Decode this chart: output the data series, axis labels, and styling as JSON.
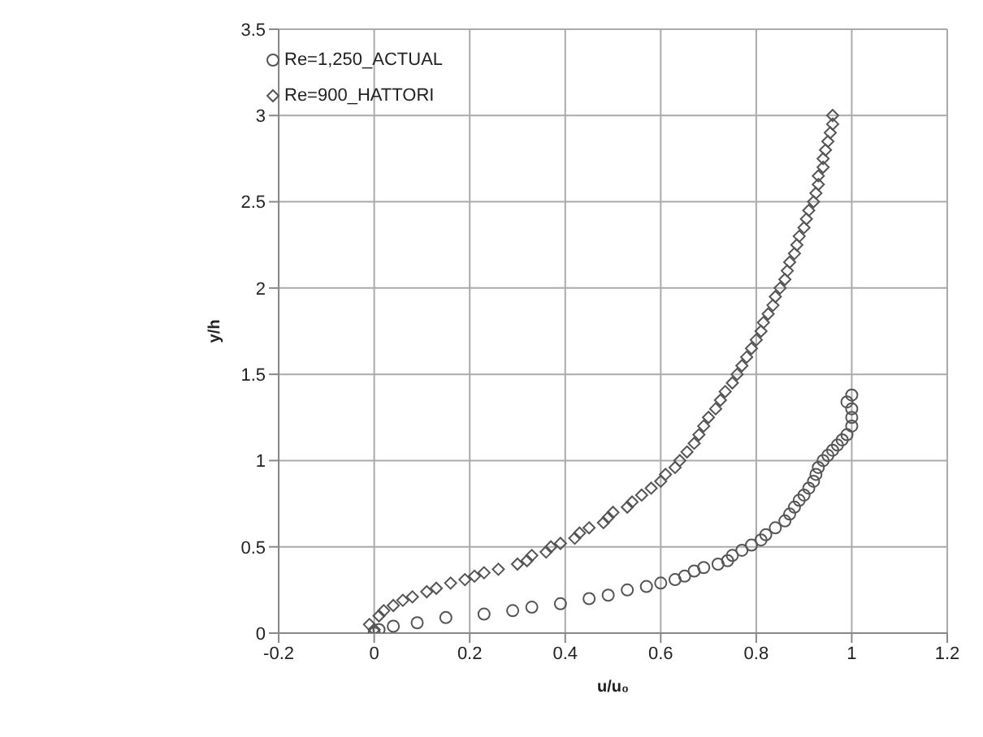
{
  "chart_data": {
    "type": "scatter",
    "xlabel": "u/u₀",
    "ylabel": "y/h",
    "xlim": [
      -0.2,
      1.2
    ],
    "xticks": [
      -0.2,
      0,
      0.2,
      0.4,
      0.6,
      0.8,
      1,
      1.2
    ],
    "ylim": [
      0,
      3.5
    ],
    "yticks": [
      0,
      0.5,
      1,
      1.5,
      2,
      2.5,
      3,
      3.5
    ],
    "grid": true,
    "legend": "top left",
    "series": [
      {
        "name": "Re=1,250_ACTUAL",
        "color": "#555555",
        "marker": "circle",
        "x": [
          0,
          0.01,
          0.04,
          0.09,
          0.15,
          0.23,
          0.29,
          0.33,
          0.39,
          0.45,
          0.49,
          0.53,
          0.57,
          0.6,
          0.63,
          0.65,
          0.67,
          0.69,
          0.72,
          0.74,
          0.75,
          0.77,
          0.79,
          0.81,
          0.82,
          0.84,
          0.86,
          0.87,
          0.88,
          0.89,
          0.9,
          0.91,
          0.92,
          0.925,
          0.93,
          0.94,
          0.95,
          0.96,
          0.97,
          0.98,
          0.99,
          1,
          1,
          1,
          0.99,
          1
        ],
        "values": [
          0,
          0.02,
          0.04,
          0.06,
          0.09,
          0.11,
          0.13,
          0.15,
          0.17,
          0.2,
          0.22,
          0.25,
          0.27,
          0.29,
          0.31,
          0.33,
          0.36,
          0.38,
          0.4,
          0.42,
          0.45,
          0.48,
          0.51,
          0.54,
          0.57,
          0.61,
          0.65,
          0.69,
          0.73,
          0.77,
          0.8,
          0.84,
          0.88,
          0.92,
          0.96,
          1,
          1.03,
          1.06,
          1.09,
          1.12,
          1.15,
          1.2,
          1.25,
          1.3,
          1.34,
          1.38
        ]
      },
      {
        "name": "Re=900_HATTORI",
        "color": "#555555",
        "marker": "diamond",
        "x": [
          -0.01,
          0,
          0.01,
          0.02,
          0.04,
          0.06,
          0.08,
          0.11,
          0.13,
          0.16,
          0.19,
          0.21,
          0.23,
          0.26,
          0.3,
          0.32,
          0.33,
          0.36,
          0.37,
          0.39,
          0.42,
          0.43,
          0.45,
          0.48,
          0.49,
          0.5,
          0.53,
          0.54,
          0.56,
          0.58,
          0.6,
          0.61,
          0.63,
          0.64,
          0.655,
          0.67,
          0.68,
          0.69,
          0.7,
          0.715,
          0.725,
          0.735,
          0.75,
          0.76,
          0.77,
          0.78,
          0.79,
          0.8,
          0.81,
          0.815,
          0.825,
          0.835,
          0.84,
          0.85,
          0.86,
          0.865,
          0.87,
          0.88,
          0.885,
          0.89,
          0.9,
          0.905,
          0.91,
          0.92,
          0.925,
          0.93,
          0.93,
          0.94,
          0.94,
          0.945,
          0.95,
          0.955,
          0.96,
          0.96
        ],
        "values": [
          0.05,
          0.02,
          0.1,
          0.13,
          0.16,
          0.19,
          0.21,
          0.24,
          0.26,
          0.29,
          0.31,
          0.33,
          0.35,
          0.37,
          0.4,
          0.42,
          0.45,
          0.47,
          0.5,
          0.52,
          0.55,
          0.58,
          0.61,
          0.64,
          0.67,
          0.7,
          0.73,
          0.76,
          0.8,
          0.84,
          0.88,
          0.92,
          0.96,
          1,
          1.05,
          1.1,
          1.15,
          1.2,
          1.25,
          1.3,
          1.35,
          1.4,
          1.45,
          1.5,
          1.55,
          1.6,
          1.65,
          1.7,
          1.75,
          1.8,
          1.85,
          1.9,
          1.95,
          2,
          2.05,
          2.1,
          2.15,
          2.2,
          2.25,
          2.3,
          2.35,
          2.4,
          2.45,
          2.5,
          2.55,
          2.6,
          2.65,
          2.7,
          2.75,
          2.8,
          2.85,
          2.9,
          2.95,
          3
        ]
      }
    ]
  }
}
